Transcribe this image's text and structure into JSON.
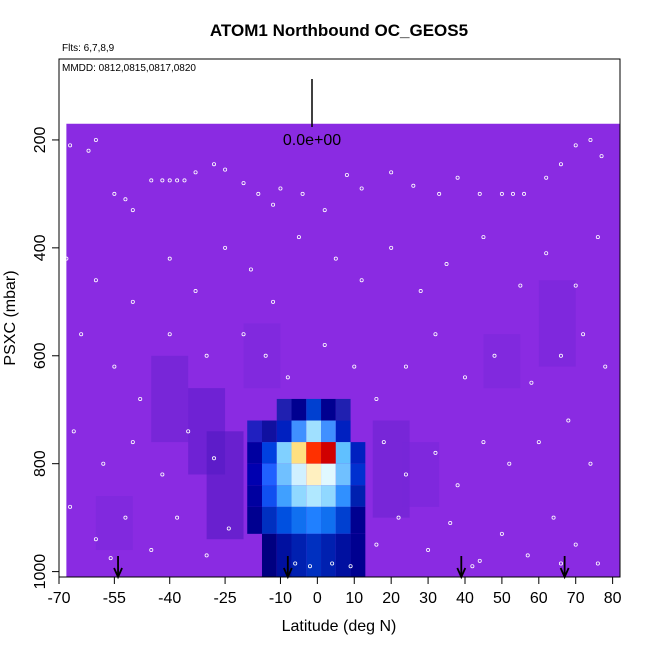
{
  "chart_data": {
    "type": "heatmap",
    "title": "ATOM1 Northbound OC_GEOS5",
    "subtitle_flights": "Flts: 6,7,8,9",
    "subtitle_dates": "MMDD: 0812,0815,0817,0820",
    "xlabel": "Latitude (deg N)",
    "ylabel": "PSXC (mbar)",
    "xlim": [
      -70,
      82
    ],
    "ylim_top": 50,
    "ylim_bottom": 1010,
    "y_reversed": true,
    "x_ticks": [
      -70,
      -55,
      -40,
      -25,
      -10,
      0,
      10,
      20,
      30,
      40,
      50,
      60,
      70,
      80
    ],
    "x_tick_labels": [
      "-70",
      "-55",
      "-40",
      "-25",
      "-10",
      "0",
      "10",
      "20",
      "30",
      "40",
      "50",
      "60",
      "70",
      "80"
    ],
    "y_ticks": [
      200,
      400,
      600,
      800,
      1000
    ],
    "y_tick_labels": [
      "200",
      "400",
      "600",
      "800",
      "1000"
    ],
    "scale_label": "0.0e+00",
    "background_field_color": "#8a2be2",
    "field_extent": {
      "lat_min": -68,
      "lat_max": 82,
      "p_top": 170,
      "p_bottom": 1010
    },
    "hotspot": {
      "center_lat": 0,
      "center_p": 780,
      "cells": [
        {
          "lat": -17,
          "p_top": 720,
          "p_bottom": 760,
          "color": "#2020c0"
        },
        {
          "lat": -13,
          "p_top": 720,
          "p_bottom": 760,
          "color": "#1010a0"
        },
        {
          "lat": -9,
          "p_top": 680,
          "p_bottom": 720,
          "color": "#2020b0"
        },
        {
          "lat": -5,
          "p_top": 680,
          "p_bottom": 720,
          "color": "#000090"
        },
        {
          "lat": -1,
          "p_top": 680,
          "p_bottom": 720,
          "color": "#0040d0"
        },
        {
          "lat": 3,
          "p_top": 680,
          "p_bottom": 720,
          "color": "#000090"
        },
        {
          "lat": 7,
          "p_top": 680,
          "p_bottom": 720,
          "color": "#2020b0"
        },
        {
          "lat": -9,
          "p_top": 720,
          "p_bottom": 760,
          "color": "#0020c0"
        },
        {
          "lat": -5,
          "p_top": 720,
          "p_bottom": 760,
          "color": "#4090ff"
        },
        {
          "lat": -1,
          "p_top": 720,
          "p_bottom": 760,
          "color": "#a0e0ff"
        },
        {
          "lat": 3,
          "p_top": 720,
          "p_bottom": 760,
          "color": "#4090ff"
        },
        {
          "lat": 7,
          "p_top": 720,
          "p_bottom": 760,
          "color": "#0020c0"
        },
        {
          "lat": -17,
          "p_top": 760,
          "p_bottom": 800,
          "color": "#0000a0"
        },
        {
          "lat": -13,
          "p_top": 760,
          "p_bottom": 800,
          "color": "#0040e0"
        },
        {
          "lat": -9,
          "p_top": 760,
          "p_bottom": 800,
          "color": "#80d0ff"
        },
        {
          "lat": -5,
          "p_top": 760,
          "p_bottom": 800,
          "color": "#ffe080"
        },
        {
          "lat": -1,
          "p_top": 760,
          "p_bottom": 800,
          "color": "#ff3000"
        },
        {
          "lat": 3,
          "p_top": 760,
          "p_bottom": 800,
          "color": "#d00000"
        },
        {
          "lat": 7,
          "p_top": 760,
          "p_bottom": 800,
          "color": "#60c0ff"
        },
        {
          "lat": 11,
          "p_top": 760,
          "p_bottom": 800,
          "color": "#0020c0"
        },
        {
          "lat": -17,
          "p_top": 800,
          "p_bottom": 840,
          "color": "#0000b0"
        },
        {
          "lat": -13,
          "p_top": 800,
          "p_bottom": 840,
          "color": "#2060ff"
        },
        {
          "lat": -9,
          "p_top": 800,
          "p_bottom": 840,
          "color": "#70c0ff"
        },
        {
          "lat": -5,
          "p_top": 800,
          "p_bottom": 840,
          "color": "#d0f0ff"
        },
        {
          "lat": -1,
          "p_top": 800,
          "p_bottom": 840,
          "color": "#fff0c0"
        },
        {
          "lat": 3,
          "p_top": 800,
          "p_bottom": 840,
          "color": "#e0f8ff"
        },
        {
          "lat": 7,
          "p_top": 800,
          "p_bottom": 840,
          "color": "#70c0ff"
        },
        {
          "lat": 11,
          "p_top": 800,
          "p_bottom": 840,
          "color": "#0030d0"
        },
        {
          "lat": -17,
          "p_top": 840,
          "p_bottom": 880,
          "color": "#0000a0"
        },
        {
          "lat": -13,
          "p_top": 840,
          "p_bottom": 880,
          "color": "#1050f0"
        },
        {
          "lat": -9,
          "p_top": 840,
          "p_bottom": 880,
          "color": "#40a0ff"
        },
        {
          "lat": -5,
          "p_top": 840,
          "p_bottom": 880,
          "color": "#90d8ff"
        },
        {
          "lat": -1,
          "p_top": 840,
          "p_bottom": 880,
          "color": "#b0e8ff"
        },
        {
          "lat": 3,
          "p_top": 840,
          "p_bottom": 880,
          "color": "#90d8ff"
        },
        {
          "lat": 7,
          "p_top": 840,
          "p_bottom": 880,
          "color": "#3090ff"
        },
        {
          "lat": 11,
          "p_top": 840,
          "p_bottom": 880,
          "color": "#0020b0"
        },
        {
          "lat": -17,
          "p_top": 880,
          "p_bottom": 930,
          "color": "#000090"
        },
        {
          "lat": -13,
          "p_top": 880,
          "p_bottom": 930,
          "color": "#0030c0"
        },
        {
          "lat": -9,
          "p_top": 880,
          "p_bottom": 930,
          "color": "#0050e0"
        },
        {
          "lat": -5,
          "p_top": 880,
          "p_bottom": 930,
          "color": "#1070f0"
        },
        {
          "lat": -1,
          "p_top": 880,
          "p_bottom": 930,
          "color": "#2080ff"
        },
        {
          "lat": 3,
          "p_top": 880,
          "p_bottom": 930,
          "color": "#1070f0"
        },
        {
          "lat": 7,
          "p_top": 880,
          "p_bottom": 930,
          "color": "#0040d0"
        },
        {
          "lat": 11,
          "p_top": 880,
          "p_bottom": 930,
          "color": "#000090"
        },
        {
          "lat": -13,
          "p_top": 930,
          "p_bottom": 1010,
          "color": "#000080"
        },
        {
          "lat": -9,
          "p_top": 930,
          "p_bottom": 1010,
          "color": "#0010a0"
        },
        {
          "lat": -5,
          "p_top": 930,
          "p_bottom": 1010,
          "color": "#0020b0"
        },
        {
          "lat": -1,
          "p_top": 930,
          "p_bottom": 1010,
          "color": "#0030c0"
        },
        {
          "lat": 3,
          "p_top": 930,
          "p_bottom": 1010,
          "color": "#0020b0"
        },
        {
          "lat": 7,
          "p_top": 930,
          "p_bottom": 1010,
          "color": "#0010a0"
        },
        {
          "lat": 11,
          "p_top": 930,
          "p_bottom": 1010,
          "color": "#000090"
        }
      ]
    },
    "haze_cells": [
      {
        "lat": -40,
        "p_top": 600,
        "p_bottom": 760,
        "color": "#6a22d0"
      },
      {
        "lat": -30,
        "p_top": 660,
        "p_bottom": 820,
        "color": "#5a1cc8"
      },
      {
        "lat": -25,
        "p_top": 740,
        "p_bottom": 940,
        "color": "#4e18c0"
      },
      {
        "lat": 20,
        "p_top": 720,
        "p_bottom": 900,
        "color": "#6a22d0"
      },
      {
        "lat": 28,
        "p_top": 760,
        "p_bottom": 880,
        "color": "#7626d8"
      },
      {
        "lat": -15,
        "p_top": 540,
        "p_bottom": 660,
        "color": "#7a28da"
      },
      {
        "lat": 65,
        "p_top": 460,
        "p_bottom": 620,
        "color": "#7626d8"
      },
      {
        "lat": 50,
        "p_top": 560,
        "p_bottom": 660,
        "color": "#7a28da"
      },
      {
        "lat": -55,
        "p_top": 860,
        "p_bottom": 960,
        "color": "#7a28da"
      }
    ],
    "flight_arrows_lat": [
      -54,
      -8,
      39,
      67
    ],
    "scatter_points": [
      {
        "lat": -67,
        "p": 210
      },
      {
        "lat": -62,
        "p": 220
      },
      {
        "lat": -60,
        "p": 200
      },
      {
        "lat": -55,
        "p": 300
      },
      {
        "lat": -52,
        "p": 310
      },
      {
        "lat": -50,
        "p": 330
      },
      {
        "lat": -45,
        "p": 275
      },
      {
        "lat": -42,
        "p": 275
      },
      {
        "lat": -40,
        "p": 275
      },
      {
        "lat": -38,
        "p": 275
      },
      {
        "lat": -36,
        "p": 275
      },
      {
        "lat": -33,
        "p": 260
      },
      {
        "lat": -28,
        "p": 245
      },
      {
        "lat": -25,
        "p": 255
      },
      {
        "lat": -20,
        "p": 280
      },
      {
        "lat": -16,
        "p": 300
      },
      {
        "lat": -12,
        "p": 320
      },
      {
        "lat": -10,
        "p": 290
      },
      {
        "lat": -4,
        "p": 300
      },
      {
        "lat": 2,
        "p": 330
      },
      {
        "lat": 8,
        "p": 265
      },
      {
        "lat": 12,
        "p": 290
      },
      {
        "lat": 20,
        "p": 260
      },
      {
        "lat": 26,
        "p": 285
      },
      {
        "lat": 33,
        "p": 300
      },
      {
        "lat": 38,
        "p": 270
      },
      {
        "lat": 44,
        "p": 300
      },
      {
        "lat": 50,
        "p": 300
      },
      {
        "lat": 53,
        "p": 300
      },
      {
        "lat": 56,
        "p": 300
      },
      {
        "lat": 62,
        "p": 270
      },
      {
        "lat": 66,
        "p": 245
      },
      {
        "lat": 70,
        "p": 210
      },
      {
        "lat": 74,
        "p": 200
      },
      {
        "lat": 77,
        "p": 230
      },
      {
        "lat": -68,
        "p": 420
      },
      {
        "lat": -60,
        "p": 460
      },
      {
        "lat": -50,
        "p": 500
      },
      {
        "lat": -40,
        "p": 420
      },
      {
        "lat": -33,
        "p": 480
      },
      {
        "lat": -25,
        "p": 400
      },
      {
        "lat": -18,
        "p": 440
      },
      {
        "lat": -12,
        "p": 500
      },
      {
        "lat": -5,
        "p": 380
      },
      {
        "lat": 5,
        "p": 420
      },
      {
        "lat": 12,
        "p": 460
      },
      {
        "lat": 20,
        "p": 400
      },
      {
        "lat": 28,
        "p": 480
      },
      {
        "lat": 35,
        "p": 430
      },
      {
        "lat": 45,
        "p": 380
      },
      {
        "lat": 55,
        "p": 470
      },
      {
        "lat": 62,
        "p": 410
      },
      {
        "lat": 70,
        "p": 470
      },
      {
        "lat": 76,
        "p": 380
      },
      {
        "lat": -64,
        "p": 560
      },
      {
        "lat": -55,
        "p": 620
      },
      {
        "lat": -48,
        "p": 680
      },
      {
        "lat": -40,
        "p": 560
      },
      {
        "lat": -30,
        "p": 600
      },
      {
        "lat": -20,
        "p": 560
      },
      {
        "lat": -14,
        "p": 600
      },
      {
        "lat": -8,
        "p": 640
      },
      {
        "lat": 2,
        "p": 580
      },
      {
        "lat": 10,
        "p": 620
      },
      {
        "lat": 16,
        "p": 680
      },
      {
        "lat": 24,
        "p": 620
      },
      {
        "lat": 32,
        "p": 560
      },
      {
        "lat": 40,
        "p": 640
      },
      {
        "lat": 48,
        "p": 600
      },
      {
        "lat": 58,
        "p": 650
      },
      {
        "lat": 66,
        "p": 600
      },
      {
        "lat": 72,
        "p": 560
      },
      {
        "lat": 78,
        "p": 620
      },
      {
        "lat": -66,
        "p": 740
      },
      {
        "lat": -58,
        "p": 800
      },
      {
        "lat": -50,
        "p": 760
      },
      {
        "lat": -42,
        "p": 820
      },
      {
        "lat": -35,
        "p": 740
      },
      {
        "lat": -28,
        "p": 790
      },
      {
        "lat": 18,
        "p": 760
      },
      {
        "lat": 24,
        "p": 820
      },
      {
        "lat": 32,
        "p": 780
      },
      {
        "lat": 38,
        "p": 840
      },
      {
        "lat": 45,
        "p": 760
      },
      {
        "lat": 52,
        "p": 800
      },
      {
        "lat": 60,
        "p": 760
      },
      {
        "lat": 68,
        "p": 720
      },
      {
        "lat": 74,
        "p": 800
      },
      {
        "lat": -67,
        "p": 880
      },
      {
        "lat": -60,
        "p": 940
      },
      {
        "lat": -52,
        "p": 900
      },
      {
        "lat": -45,
        "p": 960
      },
      {
        "lat": -38,
        "p": 900
      },
      {
        "lat": -30,
        "p": 970
      },
      {
        "lat": -24,
        "p": 920
      },
      {
        "lat": 16,
        "p": 950
      },
      {
        "lat": 22,
        "p": 900
      },
      {
        "lat": 30,
        "p": 960
      },
      {
        "lat": 36,
        "p": 910
      },
      {
        "lat": 44,
        "p": 980
      },
      {
        "lat": 50,
        "p": 930
      },
      {
        "lat": 57,
        "p": 970
      },
      {
        "lat": 64,
        "p": 900
      },
      {
        "lat": 70,
        "p": 950
      },
      {
        "lat": 76,
        "p": 985
      },
      {
        "lat": -6,
        "p": 985
      },
      {
        "lat": -2,
        "p": 990
      },
      {
        "lat": 4,
        "p": 985
      },
      {
        "lat": 9,
        "p": 990
      },
      {
        "lat": -56,
        "p": 975
      },
      {
        "lat": 42,
        "p": 990
      },
      {
        "lat": 66,
        "p": 985
      }
    ]
  }
}
